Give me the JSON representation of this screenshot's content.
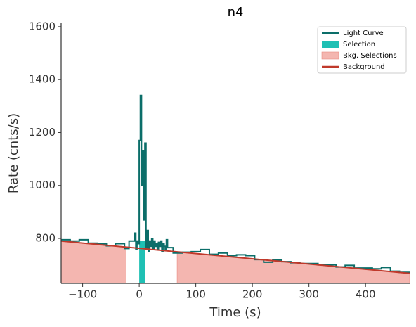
{
  "chart_data": {
    "type": "step",
    "title": "n4",
    "xlabel": "Time (s)",
    "ylabel": "Rate (cnts/s)",
    "xlim": [
      -138,
      478
    ],
    "ylim": [
      630,
      1613
    ],
    "xticks": [
      {
        "value": -100,
        "label": "−100"
      },
      0,
      100,
      200,
      300,
      400
    ],
    "yticks": [
      800,
      1000,
      1200,
      1400,
      1600
    ],
    "grid": false,
    "legend": "upper right",
    "series": [
      {
        "name": "Light Curve",
        "color": "#0b6e69",
        "x": [
          -138,
          -122,
          -106,
          -90,
          -74,
          -58,
          -42,
          -26,
          -18,
          -8,
          -6,
          -4,
          -2,
          0,
          2,
          4,
          6,
          8,
          10,
          12,
          14,
          16,
          18,
          20,
          22,
          24,
          26,
          28,
          30,
          32,
          34,
          36,
          38,
          40,
          42,
          44,
          46,
          48,
          50,
          60,
          76,
          92,
          108,
          124,
          140,
          156,
          172,
          188,
          204,
          220,
          236,
          252,
          268,
          284,
          300,
          316,
          332,
          348,
          364,
          380,
          396,
          412,
          428,
          444,
          460
        ],
        "values": [
          795,
          790,
          795,
          782,
          780,
          772,
          780,
          762,
          790,
          820,
          760,
          790,
          780,
          1170,
          1340,
          1000,
          1130,
          870,
          1160,
          760,
          830,
          750,
          790,
          770,
          800,
          760,
          790,
          770,
          780,
          760,
          785,
          770,
          790,
          750,
          780,
          770,
          760,
          795,
          765,
          745,
          748,
          750,
          758,
          740,
          745,
          735,
          738,
          735,
          720,
          710,
          718,
          712,
          708,
          705,
          705,
          700,
          700,
          692,
          698,
          688,
          688,
          685,
          690,
          676,
          672
        ]
      },
      {
        "name": "Background",
        "color": "#c0392b",
        "x": [
          -138,
          478
        ],
        "values": [
          790,
          668
        ]
      }
    ],
    "regions": [
      {
        "name": "Selection",
        "color": "#1fc0b4",
        "ranges": [
          [
            0,
            10
          ]
        ]
      },
      {
        "name": "Bkg. Selections",
        "color": "#f4b6b0",
        "ranges": [
          [
            -138,
            -23
          ],
          [
            67,
            478
          ]
        ]
      }
    ]
  }
}
